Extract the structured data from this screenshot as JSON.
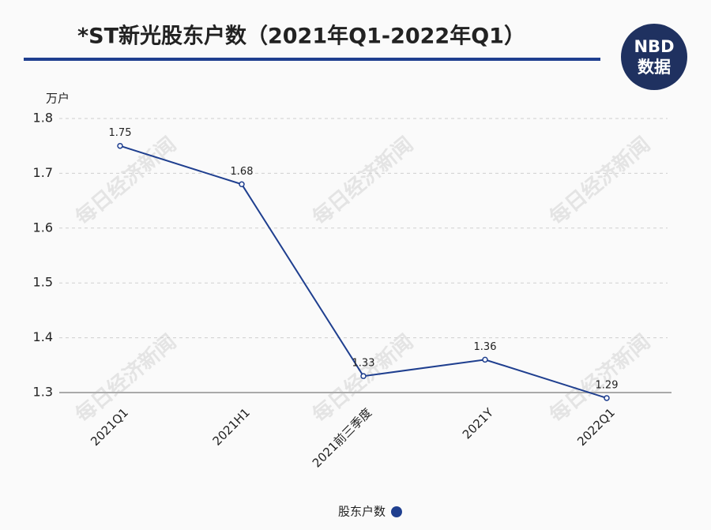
{
  "chart_data": {
    "type": "line",
    "title": "*ST新光股东户数（2021年Q1-2022年Q1）",
    "logo_top": "NBD",
    "logo_bottom": "数据",
    "watermark": "每日经济新闻",
    "y_unit": "万户",
    "categories": [
      "2021Q1",
      "2021H1",
      "2021前三季度",
      "2021Y",
      "2022Q1"
    ],
    "series": [
      {
        "name": "股东户数",
        "color": "#1f3f8f",
        "values": [
          1.75,
          1.68,
          1.33,
          1.36,
          1.29
        ]
      }
    ],
    "ylim": [
      1.3,
      1.8
    ],
    "yticks": [
      1.3,
      1.4,
      1.5,
      1.6,
      1.7,
      1.8
    ],
    "grid": true
  }
}
